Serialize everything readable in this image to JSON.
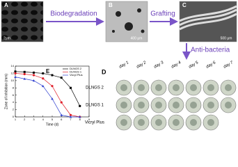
{
  "panels": {
    "a": {
      "label": "A",
      "scale": "2μm"
    },
    "b": {
      "label": "B",
      "scale": "400 μm"
    },
    "c": {
      "label": "C",
      "scale": "500 μm"
    },
    "d": {
      "label": "D",
      "columns": [
        "day 1",
        "day 2",
        "day 3",
        "day 4",
        "day 5",
        "day 6",
        "day 7"
      ],
      "rows": [
        "DLNGS 2",
        "DLNGS 1",
        "Vicryl Plus"
      ]
    }
  },
  "arrows": {
    "biodegradation": "Biodegradation",
    "grafting": "Grafting",
    "antibacteria": "Anti-bacteria"
  },
  "chart_data": {
    "type": "line",
    "panel_label": "E",
    "x_label": "Time (d)",
    "y_label": "Zone of inhibition (mm)",
    "x": [
      1,
      2,
      3,
      4,
      5,
      6,
      7,
      8
    ],
    "series": [
      {
        "name": "DLNGS 2",
        "color": "#000000",
        "marker": "square",
        "values": [
          12.5,
          12.4,
          12.2,
          12,
          11.5,
          10.8,
          8,
          3
        ]
      },
      {
        "name": "DLNGS 1",
        "color": "#e0202a",
        "marker": "circle",
        "values": [
          12,
          11.8,
          11.5,
          10.6,
          8.5,
          4,
          0.5,
          0
        ]
      },
      {
        "name": "Vicryl Plus",
        "color": "#3040d0",
        "marker": "triangle",
        "values": [
          11,
          10.5,
          10,
          8.5,
          5,
          0.5,
          0,
          0
        ]
      }
    ],
    "xlim": [
      1,
      9
    ],
    "xticks": [
      1,
      2,
      3,
      4,
      5,
      6,
      7,
      8,
      9
    ],
    "ylim": [
      0,
      14
    ],
    "yticks": [
      0,
      2,
      4,
      6,
      8,
      10,
      12,
      14
    ]
  }
}
